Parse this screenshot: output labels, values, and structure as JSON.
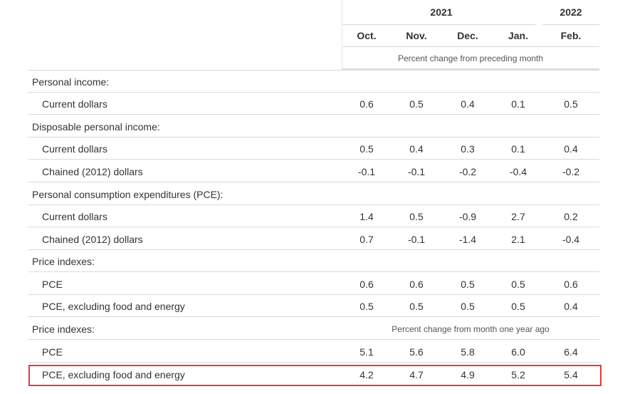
{
  "header": {
    "year_2021": "2021",
    "year_2022": "2022",
    "months": [
      "Oct.",
      "Nov.",
      "Dec.",
      "Jan.",
      "Feb."
    ],
    "unit_note": "Percent change from preceding month"
  },
  "rows": [
    {
      "label": "Personal income:"
    },
    {
      "label": "Current dollars",
      "values": [
        "0.6",
        "0.5",
        "0.4",
        "0.1",
        "0.5"
      ]
    },
    {
      "label": "Disposable personal income:"
    },
    {
      "label": "Current dollars",
      "values": [
        "0.5",
        "0.4",
        "0.3",
        "0.1",
        "0.4"
      ]
    },
    {
      "label": "Chained (2012) dollars",
      "values": [
        "-0.1",
        "-0.1",
        "-0.2",
        "-0.4",
        "-0.2"
      ]
    },
    {
      "label": "Personal consumption expenditures (PCE):"
    },
    {
      "label": "Current dollars",
      "values": [
        "1.4",
        "0.5",
        "-0.9",
        "2.7",
        "0.2"
      ]
    },
    {
      "label": "Chained (2012) dollars",
      "values": [
        "0.7",
        "-0.1",
        "-1.4",
        "2.1",
        "-0.4"
      ]
    },
    {
      "label": "Price indexes:"
    },
    {
      "label": "PCE",
      "values": [
        "0.6",
        "0.6",
        "0.5",
        "0.5",
        "0.6"
      ]
    },
    {
      "label": "PCE, excluding food and energy",
      "values": [
        "0.5",
        "0.5",
        "0.5",
        "0.5",
        "0.4"
      ]
    },
    {
      "label": "Price indexes:",
      "note": "Percent change from month one year ago"
    },
    {
      "label": "PCE",
      "values": [
        "5.1",
        "5.6",
        "5.8",
        "6.0",
        "6.4"
      ]
    },
    {
      "label": "PCE, excluding food and energy",
      "values": [
        "4.2",
        "4.7",
        "4.9",
        "5.2",
        "5.4"
      ]
    }
  ],
  "colors": {
    "highlight_border": "#e23b3b",
    "text": "#333333",
    "rule": "#d9d9d9"
  }
}
